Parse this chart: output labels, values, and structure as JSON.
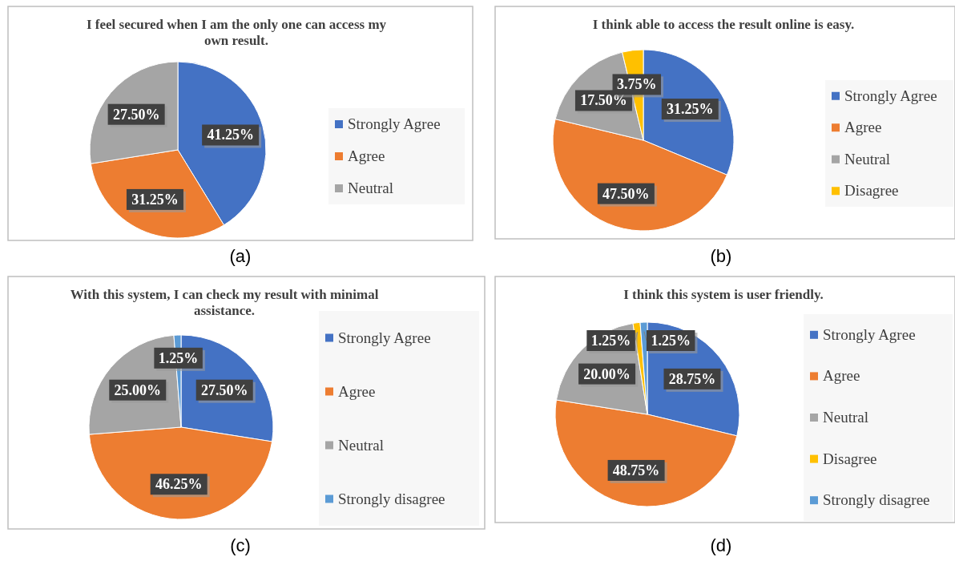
{
  "chart_data": [
    {
      "type": "pie",
      "title": "I feel secured when I am the only one can access my own result.",
      "categories": [
        "Strongly Agree",
        "Agree",
        "Neutral"
      ],
      "values": [
        41.25,
        31.25,
        27.5
      ],
      "colors": [
        "#4472c4",
        "#ed7d31",
        "#a5a5a5"
      ],
      "value_labels": [
        "41.25%",
        "31.25%",
        "27.50%"
      ],
      "legend": "right",
      "annotations": [
        "(a)"
      ]
    },
    {
      "type": "pie",
      "title": "I think able to access the result online is easy.",
      "categories": [
        "Strongly Agree",
        "Agree",
        "Neutral",
        "Disagree"
      ],
      "values": [
        31.25,
        47.5,
        17.5,
        3.75
      ],
      "colors": [
        "#4472c4",
        "#ed7d31",
        "#a5a5a5",
        "#ffc000"
      ],
      "value_labels": [
        "31.25%",
        "47.50%",
        "17.50%",
        "3.75%"
      ],
      "legend": "right",
      "annotations": [
        "(b)"
      ]
    },
    {
      "type": "pie",
      "title": "With this system, I can check my result with minimal assistance.",
      "categories": [
        "Strongly Agree",
        "Agree",
        "Neutral",
        "Strongly disagree"
      ],
      "values": [
        27.5,
        46.25,
        25,
        1.25
      ],
      "colors": [
        "#4472c4",
        "#ed7d31",
        "#a5a5a5",
        "#5b9bd5"
      ],
      "value_labels": [
        "27.50%",
        "46.25%",
        "25.00%",
        "1.25%"
      ],
      "legend": "right",
      "annotations": [
        "(c)"
      ]
    },
    {
      "type": "pie",
      "title": "I think this system is user friendly.",
      "categories": [
        "Strongly Agree",
        "Agree",
        "Neutral",
        "Disagree",
        "Strongly disagree"
      ],
      "values": [
        28.75,
        48.75,
        20,
        1.25,
        1.25
      ],
      "colors": [
        "#4472c4",
        "#ed7d31",
        "#a5a5a5",
        "#ffc000",
        "#5b9bd5"
      ],
      "value_labels": [
        "28.75%",
        "48.75%",
        "20.00%",
        "1.25%",
        "1.25%"
      ],
      "legend": "right",
      "annotations": [
        "(d)"
      ]
    }
  ]
}
